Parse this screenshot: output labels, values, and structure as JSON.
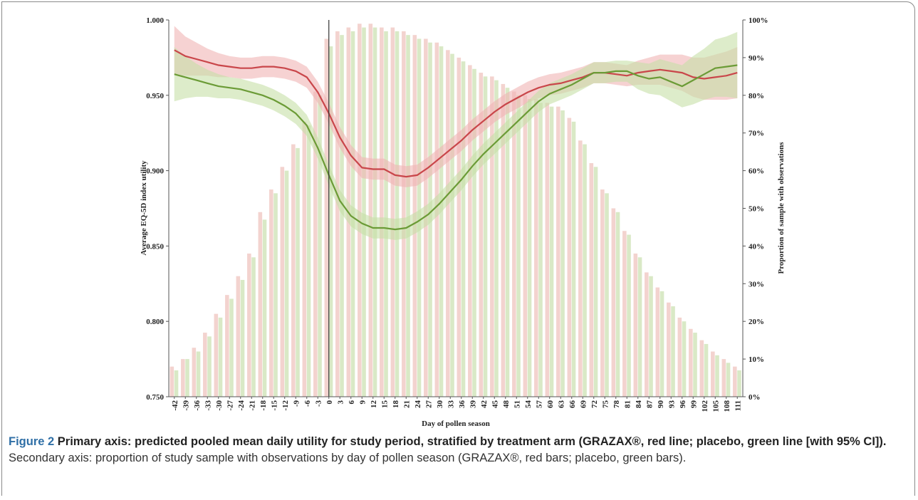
{
  "chart_data": {
    "type": "line-bar-combo",
    "x_label": "Day of pollen season",
    "y_label": "Average EQ-5D index utility",
    "y2_label": "Proportion of sample with observations",
    "caption_label": "Figure 2",
    "caption_bold": "Primary axis: predicted pooled mean daily utility for study period, stratified by treatment arm (GRAZAX®, red line; placebo, green line [with 95% CI]).",
    "caption_text": "Secondary axis: proportion of study sample with observations by day of pollen season (GRAZAX®, red bars; placebo, green bars).",
    "x": [
      -42,
      -39,
      -36,
      -33,
      -30,
      -27,
      -24,
      -21,
      -18,
      -15,
      -12,
      -9,
      -6,
      -3,
      0,
      3,
      6,
      9,
      12,
      15,
      18,
      21,
      24,
      27,
      30,
      33,
      36,
      39,
      42,
      45,
      48,
      51,
      54,
      57,
      60,
      63,
      66,
      69,
      72,
      75,
      78,
      81,
      84,
      87,
      90,
      93,
      96,
      99,
      102,
      105,
      108,
      111
    ],
    "xlim": [
      -43.5,
      112.5
    ],
    "xticks": [
      -42,
      -39,
      -36,
      -33,
      -30,
      -27,
      -24,
      -21,
      -18,
      -15,
      -12,
      -9,
      -6,
      -3,
      0,
      3,
      6,
      9,
      12,
      15,
      18,
      21,
      24,
      27,
      30,
      33,
      36,
      39,
      42,
      45,
      48,
      51,
      54,
      57,
      60,
      63,
      66,
      69,
      72,
      75,
      78,
      81,
      84,
      87,
      90,
      93,
      96,
      99,
      102,
      105,
      108,
      111
    ],
    "ylim": [
      0.75,
      1.0
    ],
    "yticks": [
      {
        "value": 0.75,
        "label": "0.750"
      },
      {
        "value": 0.8,
        "label": "0.800"
      },
      {
        "value": 0.85,
        "label": "0.850"
      },
      {
        "value": 0.9,
        "label": "0.900"
      },
      {
        "value": 0.95,
        "label": "0.950"
      },
      {
        "value": 1.0,
        "label": "1.000"
      }
    ],
    "y2lim": [
      0,
      100
    ],
    "y2ticks": [
      {
        "value": 0,
        "label": "0%"
      },
      {
        "value": 10,
        "label": "10%"
      },
      {
        "value": 20,
        "label": "20%"
      },
      {
        "value": 30,
        "label": "30%"
      },
      {
        "value": 40,
        "label": "40%"
      },
      {
        "value": 50,
        "label": "50%"
      },
      {
        "value": 60,
        "label": "60%"
      },
      {
        "value": 70,
        "label": "70%"
      },
      {
        "value": 80,
        "label": "80%"
      },
      {
        "value": 90,
        "label": "90%"
      },
      {
        "value": 100,
        "label": "100%"
      }
    ],
    "vline": 0,
    "bars": [
      {
        "color": "#f3d3cf",
        "axis": "y2",
        "values": [
          8,
          10,
          13,
          17,
          22,
          27,
          32,
          38,
          49,
          55,
          61,
          67,
          73,
          81,
          95,
          97,
          98,
          99,
          99,
          98,
          98,
          97,
          96,
          95,
          94,
          92,
          90,
          88,
          86,
          85,
          83,
          81,
          80,
          79,
          78,
          77,
          74,
          68,
          62,
          55,
          50,
          44,
          38,
          33,
          29,
          25,
          21,
          18,
          15,
          12,
          10,
          8
        ]
      },
      {
        "color": "#d9e9c6",
        "axis": "y2",
        "values": [
          7,
          10,
          12,
          16,
          21,
          26,
          31,
          37,
          47,
          54,
          60,
          66,
          72,
          80,
          93,
          96,
          97,
          98,
          98,
          97,
          97,
          96,
          95,
          94,
          93,
          91,
          89,
          87,
          85,
          84,
          82,
          80,
          79,
          78,
          77,
          76,
          73,
          67,
          61,
          54,
          49,
          43,
          37,
          32,
          28,
          24,
          20,
          17,
          14,
          11,
          9,
          7
        ]
      }
    ],
    "series": [
      {
        "color": "#c9464a",
        "band_color": "#f0b4b4",
        "values": [
          0.98,
          0.976,
          0.974,
          0.972,
          0.97,
          0.969,
          0.968,
          0.968,
          0.969,
          0.969,
          0.968,
          0.966,
          0.962,
          0.952,
          0.938,
          0.922,
          0.91,
          0.902,
          0.901,
          0.901,
          0.897,
          0.896,
          0.897,
          0.902,
          0.908,
          0.914,
          0.92,
          0.927,
          0.933,
          0.939,
          0.944,
          0.948,
          0.952,
          0.955,
          0.957,
          0.958,
          0.96,
          0.962,
          0.965,
          0.965,
          0.964,
          0.963,
          0.965,
          0.966,
          0.967,
          0.966,
          0.965,
          0.962,
          0.961,
          0.962,
          0.963,
          0.965
        ],
        "ci": [
          0.016,
          0.013,
          0.011,
          0.009,
          0.008,
          0.007,
          0.007,
          0.007,
          0.007,
          0.007,
          0.007,
          0.007,
          0.007,
          0.007,
          0.007,
          0.007,
          0.007,
          0.007,
          0.007,
          0.007,
          0.007,
          0.007,
          0.007,
          0.007,
          0.007,
          0.007,
          0.007,
          0.007,
          0.007,
          0.007,
          0.007,
          0.007,
          0.007,
          0.007,
          0.007,
          0.007,
          0.007,
          0.007,
          0.007,
          0.007,
          0.007,
          0.007,
          0.008,
          0.009,
          0.01,
          0.011,
          0.012,
          0.013,
          0.014,
          0.015,
          0.016,
          0.017
        ]
      },
      {
        "color": "#6b9b36",
        "band_color": "#c6e0a6",
        "values": [
          0.964,
          0.962,
          0.96,
          0.958,
          0.956,
          0.955,
          0.954,
          0.952,
          0.95,
          0.947,
          0.943,
          0.938,
          0.93,
          0.915,
          0.897,
          0.88,
          0.87,
          0.865,
          0.862,
          0.862,
          0.861,
          0.862,
          0.866,
          0.871,
          0.878,
          0.886,
          0.894,
          0.903,
          0.911,
          0.918,
          0.925,
          0.932,
          0.939,
          0.946,
          0.951,
          0.954,
          0.957,
          0.961,
          0.965,
          0.965,
          0.966,
          0.966,
          0.963,
          0.961,
          0.962,
          0.959,
          0.956,
          0.96,
          0.964,
          0.968,
          0.969,
          0.97
        ],
        "ci": [
          0.018,
          0.014,
          0.011,
          0.009,
          0.008,
          0.007,
          0.007,
          0.007,
          0.007,
          0.007,
          0.007,
          0.007,
          0.007,
          0.007,
          0.007,
          0.007,
          0.007,
          0.007,
          0.007,
          0.007,
          0.007,
          0.007,
          0.007,
          0.007,
          0.007,
          0.007,
          0.007,
          0.007,
          0.007,
          0.007,
          0.007,
          0.007,
          0.007,
          0.007,
          0.007,
          0.007,
          0.007,
          0.007,
          0.007,
          0.007,
          0.007,
          0.007,
          0.009,
          0.01,
          0.012,
          0.013,
          0.014,
          0.016,
          0.017,
          0.019,
          0.02,
          0.022
        ]
      }
    ]
  }
}
